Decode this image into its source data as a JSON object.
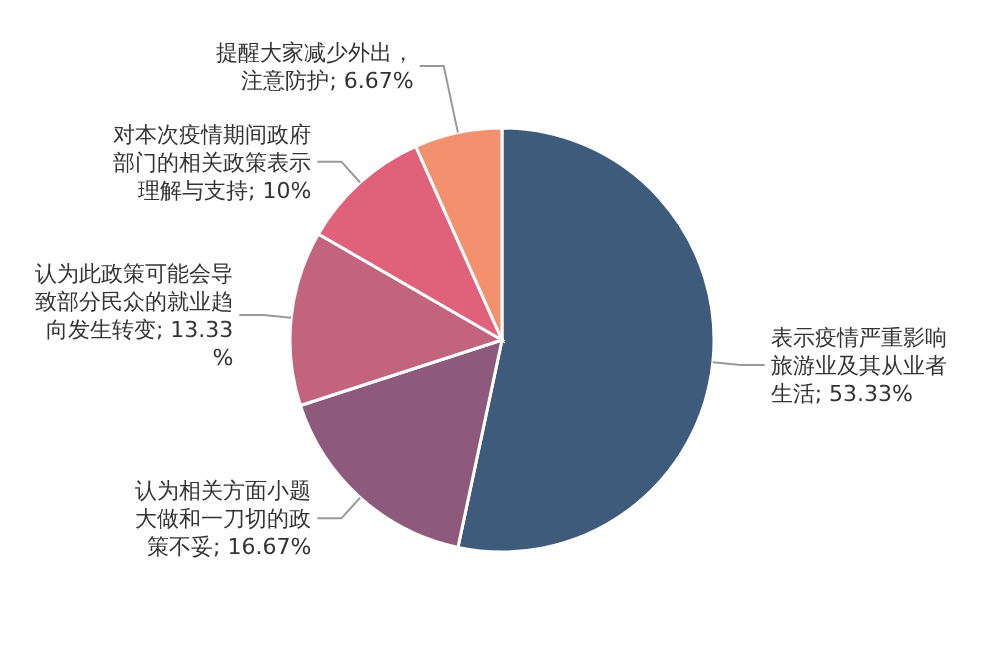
{
  "chart_data": {
    "type": "pie",
    "categories": [
      "表示疫情严重影响旅游业及其从业者生活",
      "认为相关方面小题大做和一刀切的政策不妥",
      "认为此政策可能会导致部分民众的就业趋向发生转变",
      "对本次疫情期间政府部门的相关政策表示理解与支持",
      "提醒大家减少外出，注意防护"
    ],
    "values": [
      53.33,
      16.67,
      13.33,
      10,
      6.67
    ],
    "colors": [
      "#3e5b7c",
      "#8e5a7c",
      "#c3647f",
      "#e0627a",
      "#f3906e"
    ],
    "value_labels": [
      "53.33%",
      "16.67%",
      "13.33%",
      "10%",
      "6.67%"
    ]
  }
}
